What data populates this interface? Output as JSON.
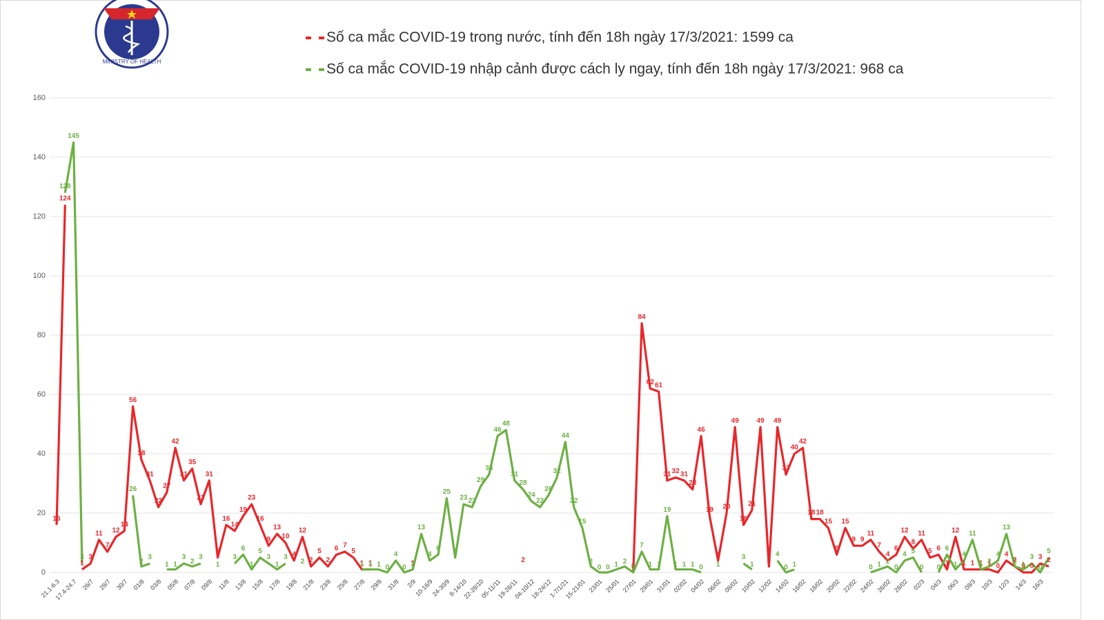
{
  "logo": {
    "text": "MINISTRY OF HEALTH"
  },
  "chart_data": {
    "type": "line",
    "categories": [
      "21.1-6.3",
      null,
      "17.4-24.7",
      null,
      "26/7",
      null,
      "28/7",
      null,
      "30/7",
      null,
      "01/8",
      null,
      "03/8",
      null,
      "05/8",
      null,
      "07/8",
      null,
      "09/8",
      null,
      "11/8",
      null,
      "13/8",
      null,
      "15/8",
      null,
      "17/8",
      null,
      "19/8",
      null,
      "21/8",
      null,
      "23/8",
      null,
      "25/8",
      null,
      "27/8",
      null,
      "29/8",
      null,
      "31/8",
      null,
      "2/9",
      null,
      "10-16/9",
      null,
      "24-30/9",
      null,
      "8-14/10",
      null,
      "22-28/10",
      null,
      "05-11/11",
      null,
      "19-26/11",
      null,
      "04-10/12",
      null,
      "18-24/12",
      null,
      "1-7/1/21",
      null,
      "15-21/01",
      null,
      "23/01",
      null,
      "25/01",
      null,
      "27/01",
      null,
      "29/01",
      null,
      "31/01",
      null,
      "02/02",
      null,
      "04/02",
      null,
      "06/02",
      null,
      "08/02",
      null,
      "10/02",
      null,
      "12/02",
      null,
      "14/02",
      null,
      "16/02",
      null,
      "18/02",
      null,
      "20/02",
      null,
      "22/02",
      null,
      "24/02",
      null,
      "26/02",
      null,
      "28/02",
      null,
      "02/3",
      null,
      "04/3",
      null,
      "06/3",
      null,
      "08/3",
      null,
      "10/3",
      null,
      "12/3",
      null,
      "14/3",
      null,
      "16/3",
      null
    ],
    "series": [
      {
        "name": "Số ca mắc COVID-19 trong nước, tính đến 18h ngày 17/3/2021: 1599 ca",
        "color": "#e8262a",
        "values": [
          16,
          124,
          null,
          1,
          3,
          11,
          7,
          12,
          14,
          56,
          38,
          31,
          22,
          27,
          42,
          31,
          35,
          23,
          31,
          5,
          16,
          14,
          19,
          23,
          16,
          9,
          13,
          10,
          4,
          12,
          2,
          5,
          2,
          6,
          7,
          5,
          1,
          1,
          null,
          null,
          null,
          null,
          1,
          null,
          null,
          null,
          null,
          null,
          null,
          null,
          null,
          null,
          null,
          null,
          null,
          2,
          null,
          null,
          null,
          null,
          null,
          null,
          null,
          null,
          null,
          null,
          null,
          null,
          0,
          84,
          62,
          61,
          31,
          32,
          31,
          28,
          46,
          19,
          4,
          20,
          49,
          16,
          21,
          49,
          2,
          49,
          33,
          40,
          42,
          18,
          18,
          15,
          6,
          15,
          9,
          9,
          11,
          7,
          4,
          6,
          12,
          8,
          11,
          5,
          6,
          1,
          12,
          1,
          1,
          1,
          1,
          0,
          4,
          2,
          0,
          0,
          3,
          2
        ]
      },
      {
        "name": "Số ca mắc COVID-19 nhập cảnh được cách ly ngay, tính đến 18h ngày 17/3/2021: 968 ca",
        "color": "#6cb043",
        "values": [
          null,
          128,
          145,
          3,
          null,
          null,
          null,
          null,
          null,
          26,
          2,
          3,
          null,
          1,
          1,
          3,
          2,
          3,
          null,
          1,
          null,
          3,
          6,
          1,
          5,
          3,
          1,
          3,
          null,
          2,
          null,
          null,
          null,
          null,
          null,
          null,
          1,
          1,
          1,
          0,
          4,
          0,
          1,
          13,
          4,
          6,
          25,
          5,
          23,
          22,
          29,
          33,
          46,
          48,
          31,
          28,
          24,
          22,
          26,
          32,
          44,
          22,
          15,
          2,
          0,
          0,
          1,
          2,
          0,
          7,
          1,
          1,
          19,
          1,
          1,
          1,
          0,
          null,
          1,
          null,
          null,
          3,
          1,
          null,
          null,
          4,
          0,
          1,
          null,
          null,
          null,
          null,
          null,
          null,
          null,
          null,
          0,
          1,
          2,
          0,
          4,
          5,
          0,
          null,
          0,
          6,
          1,
          4,
          11,
          1,
          2,
          4,
          13,
          2,
          1,
          3,
          0,
          5
        ]
      }
    ],
    "ylim": [
      0,
      160
    ],
    "yticks": [
      0,
      20,
      40,
      60,
      80,
      100,
      120,
      140,
      160
    ],
    "grid": true
  }
}
